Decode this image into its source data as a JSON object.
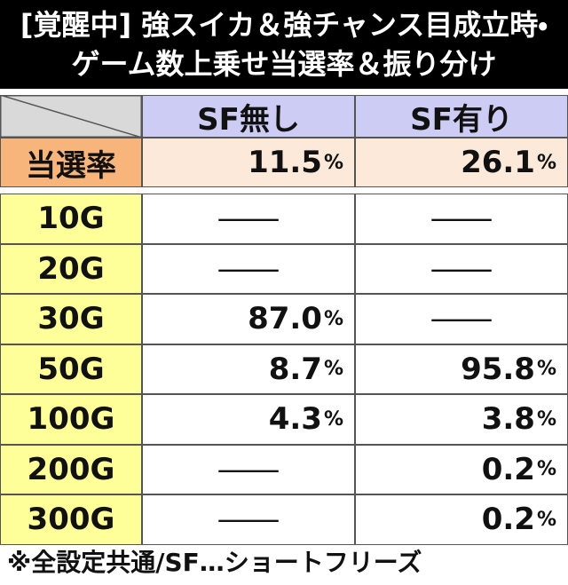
{
  "header": {
    "title_lines": [
      "[覚醒中] 強スイカ＆強チャンス目成立時・",
      "ゲーム数上乗せ当選率＆振り分け"
    ]
  },
  "table": {
    "columns": [
      "SF無し",
      "SF有り"
    ],
    "win_rate": {
      "label": "当選率",
      "values": [
        "11.5%",
        "26.1%"
      ]
    },
    "rows": [
      [
        "10G",
        "—",
        "—"
      ],
      [
        "20G",
        "—",
        "—"
      ],
      [
        "30G",
        "87.0%",
        "—"
      ],
      [
        "50G",
        "8.7%",
        "95.8%"
      ],
      [
        "100G",
        "4.3%",
        "3.8%"
      ],
      [
        "200G",
        "—",
        "0.2%"
      ],
      [
        "300G",
        "—",
        "0.2%"
      ]
    ]
  },
  "footer": "※全設定共通/SF…ショートフリーズ"
}
